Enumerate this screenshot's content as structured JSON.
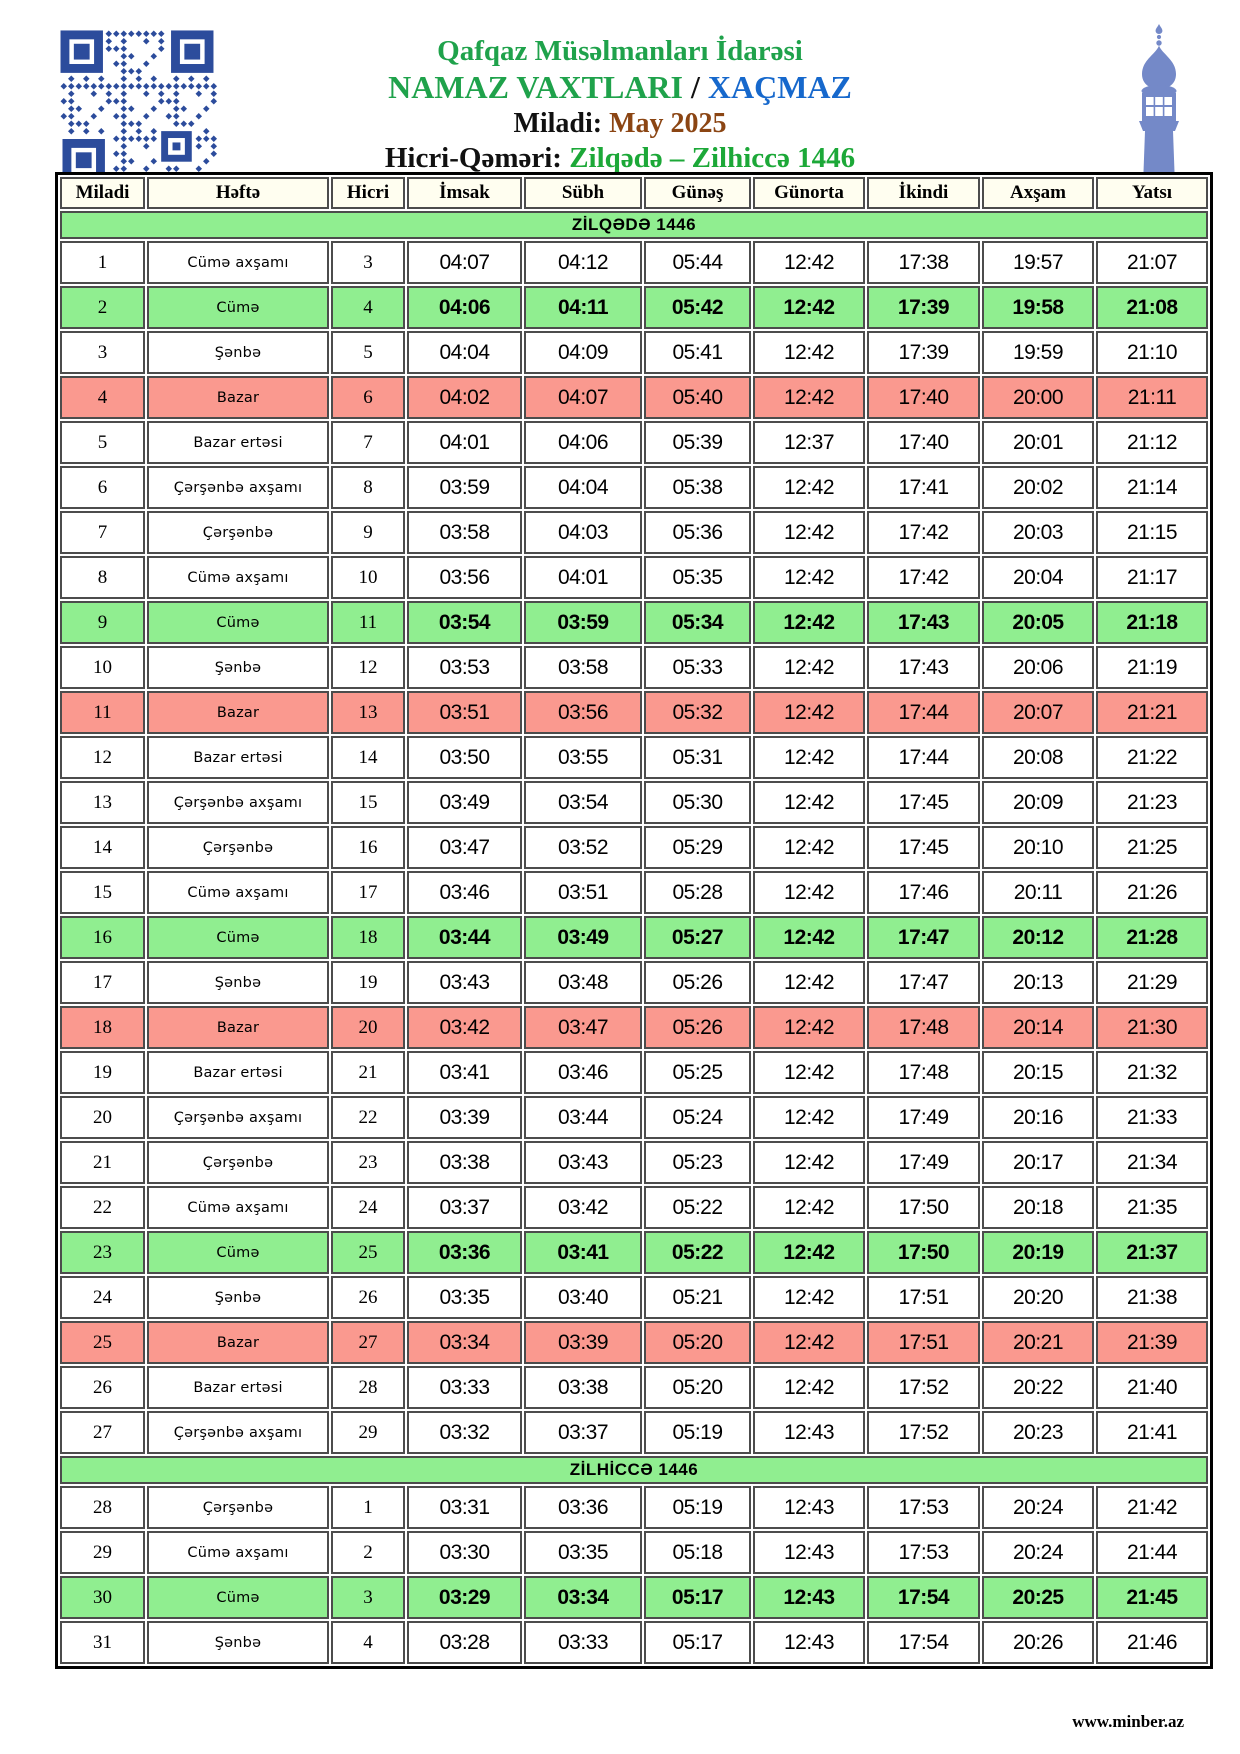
{
  "page": {
    "org_name": "Qafqaz Müsəlmanları İdarəsi",
    "title": "NAMAZ VAXTLARI",
    "separator": "/",
    "city": "XAÇMAZ",
    "miladi_label": "Miladi:",
    "miladi_value": "May 2025",
    "hicri_label": "Hicri-Qəməri:",
    "hicri_value": "Zilqədə – Zilhiccə 1446",
    "footer": "www.minber.az"
  },
  "icons": {
    "top_left": "qr-code",
    "top_right": "minaret-mosque-icon"
  },
  "colors": {
    "text-green": "#1fa24b",
    "text-green2": "#1ca838",
    "text-blue": "#1668cc",
    "text-brown": "#8b4513",
    "row-friday": "#90ee90",
    "row-sunday": "#fa998f",
    "section-bg": "#90ee90",
    "header-row-bg": "#fffef0",
    "qr-blue": "#2c4c9c",
    "minaret-blue": "#7489c8"
  },
  "table": {
    "columns": [
      "Miladi",
      "Həftə",
      "Hicri",
      "İmsak",
      "Sübh",
      "Günəş",
      "Günorta",
      "İkindi",
      "Axşam",
      "Yatsı"
    ],
    "time_keys": [
      "imsak",
      "subh",
      "gunes",
      "gunorta",
      "ikindi",
      "axsam",
      "yatsi"
    ],
    "sections": [
      {
        "title": "ZİLQƏDƏ 1446",
        "rows": [
          {
            "miladi": "1",
            "weekday": "Cümə axşamı",
            "hicri": "3",
            "times": [
              "04:07",
              "04:12",
              "05:44",
              "12:42",
              "17:38",
              "19:57",
              "21:07"
            ],
            "highlight": "none"
          },
          {
            "miladi": "2",
            "weekday": "Cümə",
            "hicri": "4",
            "times": [
              "04:06",
              "04:11",
              "05:42",
              "12:42",
              "17:39",
              "19:58",
              "21:08"
            ],
            "highlight": "friday"
          },
          {
            "miladi": "3",
            "weekday": "Şənbə",
            "hicri": "5",
            "times": [
              "04:04",
              "04:09",
              "05:41",
              "12:42",
              "17:39",
              "19:59",
              "21:10"
            ],
            "highlight": "none"
          },
          {
            "miladi": "4",
            "weekday": "Bazar",
            "hicri": "6",
            "times": [
              "04:02",
              "04:07",
              "05:40",
              "12:42",
              "17:40",
              "20:00",
              "21:11"
            ],
            "highlight": "sunday"
          },
          {
            "miladi": "5",
            "weekday": "Bazar ertəsi",
            "hicri": "7",
            "times": [
              "04:01",
              "04:06",
              "05:39",
              "12:37",
              "17:40",
              "20:01",
              "21:12"
            ],
            "highlight": "none"
          },
          {
            "miladi": "6",
            "weekday": "Çərşənbə axşamı",
            "hicri": "8",
            "times": [
              "03:59",
              "04:04",
              "05:38",
              "12:42",
              "17:41",
              "20:02",
              "21:14"
            ],
            "highlight": "none"
          },
          {
            "miladi": "7",
            "weekday": "Çərşənbə",
            "hicri": "9",
            "times": [
              "03:58",
              "04:03",
              "05:36",
              "12:42",
              "17:42",
              "20:03",
              "21:15"
            ],
            "highlight": "none"
          },
          {
            "miladi": "8",
            "weekday": "Cümə axşamı",
            "hicri": "10",
            "times": [
              "03:56",
              "04:01",
              "05:35",
              "12:42",
              "17:42",
              "20:04",
              "21:17"
            ],
            "highlight": "none"
          },
          {
            "miladi": "9",
            "weekday": "Cümə",
            "hicri": "11",
            "times": [
              "03:54",
              "03:59",
              "05:34",
              "12:42",
              "17:43",
              "20:05",
              "21:18"
            ],
            "highlight": "friday"
          },
          {
            "miladi": "10",
            "weekday": "Şənbə",
            "hicri": "12",
            "times": [
              "03:53",
              "03:58",
              "05:33",
              "12:42",
              "17:43",
              "20:06",
              "21:19"
            ],
            "highlight": "none"
          },
          {
            "miladi": "11",
            "weekday": "Bazar",
            "hicri": "13",
            "times": [
              "03:51",
              "03:56",
              "05:32",
              "12:42",
              "17:44",
              "20:07",
              "21:21"
            ],
            "highlight": "sunday"
          },
          {
            "miladi": "12",
            "weekday": "Bazar ertəsi",
            "hicri": "14",
            "times": [
              "03:50",
              "03:55",
              "05:31",
              "12:42",
              "17:44",
              "20:08",
              "21:22"
            ],
            "highlight": "none"
          },
          {
            "miladi": "13",
            "weekday": "Çərşənbə axşamı",
            "hicri": "15",
            "times": [
              "03:49",
              "03:54",
              "05:30",
              "12:42",
              "17:45",
              "20:09",
              "21:23"
            ],
            "highlight": "none"
          },
          {
            "miladi": "14",
            "weekday": "Çərşənbə",
            "hicri": "16",
            "times": [
              "03:47",
              "03:52",
              "05:29",
              "12:42",
              "17:45",
              "20:10",
              "21:25"
            ],
            "highlight": "none"
          },
          {
            "miladi": "15",
            "weekday": "Cümə axşamı",
            "hicri": "17",
            "times": [
              "03:46",
              "03:51",
              "05:28",
              "12:42",
              "17:46",
              "20:11",
              "21:26"
            ],
            "highlight": "none"
          },
          {
            "miladi": "16",
            "weekday": "Cümə",
            "hicri": "18",
            "times": [
              "03:44",
              "03:49",
              "05:27",
              "12:42",
              "17:47",
              "20:12",
              "21:28"
            ],
            "highlight": "friday"
          },
          {
            "miladi": "17",
            "weekday": "Şənbə",
            "hicri": "19",
            "times": [
              "03:43",
              "03:48",
              "05:26",
              "12:42",
              "17:47",
              "20:13",
              "21:29"
            ],
            "highlight": "none"
          },
          {
            "miladi": "18",
            "weekday": "Bazar",
            "hicri": "20",
            "times": [
              "03:42",
              "03:47",
              "05:26",
              "12:42",
              "17:48",
              "20:14",
              "21:30"
            ],
            "highlight": "sunday"
          },
          {
            "miladi": "19",
            "weekday": "Bazar ertəsi",
            "hicri": "21",
            "times": [
              "03:41",
              "03:46",
              "05:25",
              "12:42",
              "17:48",
              "20:15",
              "21:32"
            ],
            "highlight": "none"
          },
          {
            "miladi": "20",
            "weekday": "Çərşənbə axşamı",
            "hicri": "22",
            "times": [
              "03:39",
              "03:44",
              "05:24",
              "12:42",
              "17:49",
              "20:16",
              "21:33"
            ],
            "highlight": "none"
          },
          {
            "miladi": "21",
            "weekday": "Çərşənbə",
            "hicri": "23",
            "times": [
              "03:38",
              "03:43",
              "05:23",
              "12:42",
              "17:49",
              "20:17",
              "21:34"
            ],
            "highlight": "none"
          },
          {
            "miladi": "22",
            "weekday": "Cümə axşamı",
            "hicri": "24",
            "times": [
              "03:37",
              "03:42",
              "05:22",
              "12:42",
              "17:50",
              "20:18",
              "21:35"
            ],
            "highlight": "none"
          },
          {
            "miladi": "23",
            "weekday": "Cümə",
            "hicri": "25",
            "times": [
              "03:36",
              "03:41",
              "05:22",
              "12:42",
              "17:50",
              "20:19",
              "21:37"
            ],
            "highlight": "friday"
          },
          {
            "miladi": "24",
            "weekday": "Şənbə",
            "hicri": "26",
            "times": [
              "03:35",
              "03:40",
              "05:21",
              "12:42",
              "17:51",
              "20:20",
              "21:38"
            ],
            "highlight": "none"
          },
          {
            "miladi": "25",
            "weekday": "Bazar",
            "hicri": "27",
            "times": [
              "03:34",
              "03:39",
              "05:20",
              "12:42",
              "17:51",
              "20:21",
              "21:39"
            ],
            "highlight": "sunday"
          },
          {
            "miladi": "26",
            "weekday": "Bazar ertəsi",
            "hicri": "28",
            "times": [
              "03:33",
              "03:38",
              "05:20",
              "12:42",
              "17:52",
              "20:22",
              "21:40"
            ],
            "highlight": "none"
          },
          {
            "miladi": "27",
            "weekday": "Çərşənbə axşamı",
            "hicri": "29",
            "times": [
              "03:32",
              "03:37",
              "05:19",
              "12:43",
              "17:52",
              "20:23",
              "21:41"
            ],
            "highlight": "none"
          }
        ]
      },
      {
        "title": "ZİLHİCCƏ 1446",
        "rows": [
          {
            "miladi": "28",
            "weekday": "Çərşənbə",
            "hicri": "1",
            "times": [
              "03:31",
              "03:36",
              "05:19",
              "12:43",
              "17:53",
              "20:24",
              "21:42"
            ],
            "highlight": "none"
          },
          {
            "miladi": "29",
            "weekday": "Cümə axşamı",
            "hicri": "2",
            "times": [
              "03:30",
              "03:35",
              "05:18",
              "12:43",
              "17:53",
              "20:24",
              "21:44"
            ],
            "highlight": "none"
          },
          {
            "miladi": "30",
            "weekday": "Cümə",
            "hicri": "3",
            "times": [
              "03:29",
              "03:34",
              "05:17",
              "12:43",
              "17:54",
              "20:25",
              "21:45"
            ],
            "highlight": "friday"
          },
          {
            "miladi": "31",
            "weekday": "Şənbə",
            "hicri": "4",
            "times": [
              "03:28",
              "03:33",
              "05:17",
              "12:43",
              "17:54",
              "20:26",
              "21:46"
            ],
            "highlight": "none"
          }
        ]
      }
    ]
  }
}
